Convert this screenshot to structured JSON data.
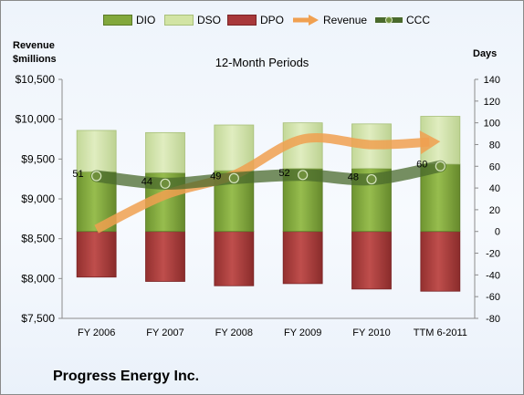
{
  "chart_title": "12-Month Periods",
  "left_axis_title_line1": "Revenue",
  "left_axis_title_line2": "$millions",
  "right_axis_title": "Days",
  "company_name": "Progress Energy Inc.",
  "legend": [
    {
      "label": "DIO",
      "color": "#82a83c"
    },
    {
      "label": "DSO",
      "color": "#d2e4a4"
    },
    {
      "label": "DPO",
      "color": "#a8383a"
    },
    {
      "label": "Revenue",
      "color": "#f0a050"
    },
    {
      "label": "CCC",
      "color": "#4a6a2c"
    }
  ],
  "chart_data": {
    "type": "bar",
    "categories": [
      "FY 2006",
      "FY 2007",
      "FY 2008",
      "FY 2009",
      "FY 2010",
      "TTM 6-2011"
    ],
    "left_axis": {
      "ylim": [
        7500,
        10500
      ],
      "ticks": [
        "$7,500",
        "$8,000",
        "$8,500",
        "$9,000",
        "$9,500",
        "$10,000",
        "$10,500"
      ]
    },
    "right_axis": {
      "ylim": [
        -80,
        140
      ],
      "ticks": [
        "-80",
        "-60",
        "-40",
        "-20",
        "0",
        "20",
        "40",
        "60",
        "80",
        "100",
        "120",
        "140"
      ]
    },
    "series": [
      {
        "name": "DIO",
        "axis": "right",
        "kind": "stacked-bar",
        "values": [
          55,
          54,
          56,
          58,
          58,
          62
        ]
      },
      {
        "name": "DSO",
        "axis": "right",
        "kind": "stacked-bar",
        "values": [
          38,
          37,
          42,
          42,
          41,
          44
        ]
      },
      {
        "name": "DPO",
        "axis": "right",
        "kind": "bar",
        "values": [
          -42,
          -46,
          -50,
          -48,
          -53,
          -55
        ]
      },
      {
        "name": "CCC",
        "axis": "right",
        "kind": "line",
        "values": [
          51,
          44,
          49,
          52,
          48,
          60
        ],
        "labels": [
          "51",
          "44",
          "49",
          "52",
          "48",
          "60"
        ]
      },
      {
        "name": "Revenue",
        "axis": "left",
        "kind": "arrow-trend",
        "values": [
          8620,
          9050,
          9300,
          9750,
          9680,
          9720
        ]
      }
    ],
    "grid": false,
    "legend_position": "top"
  }
}
